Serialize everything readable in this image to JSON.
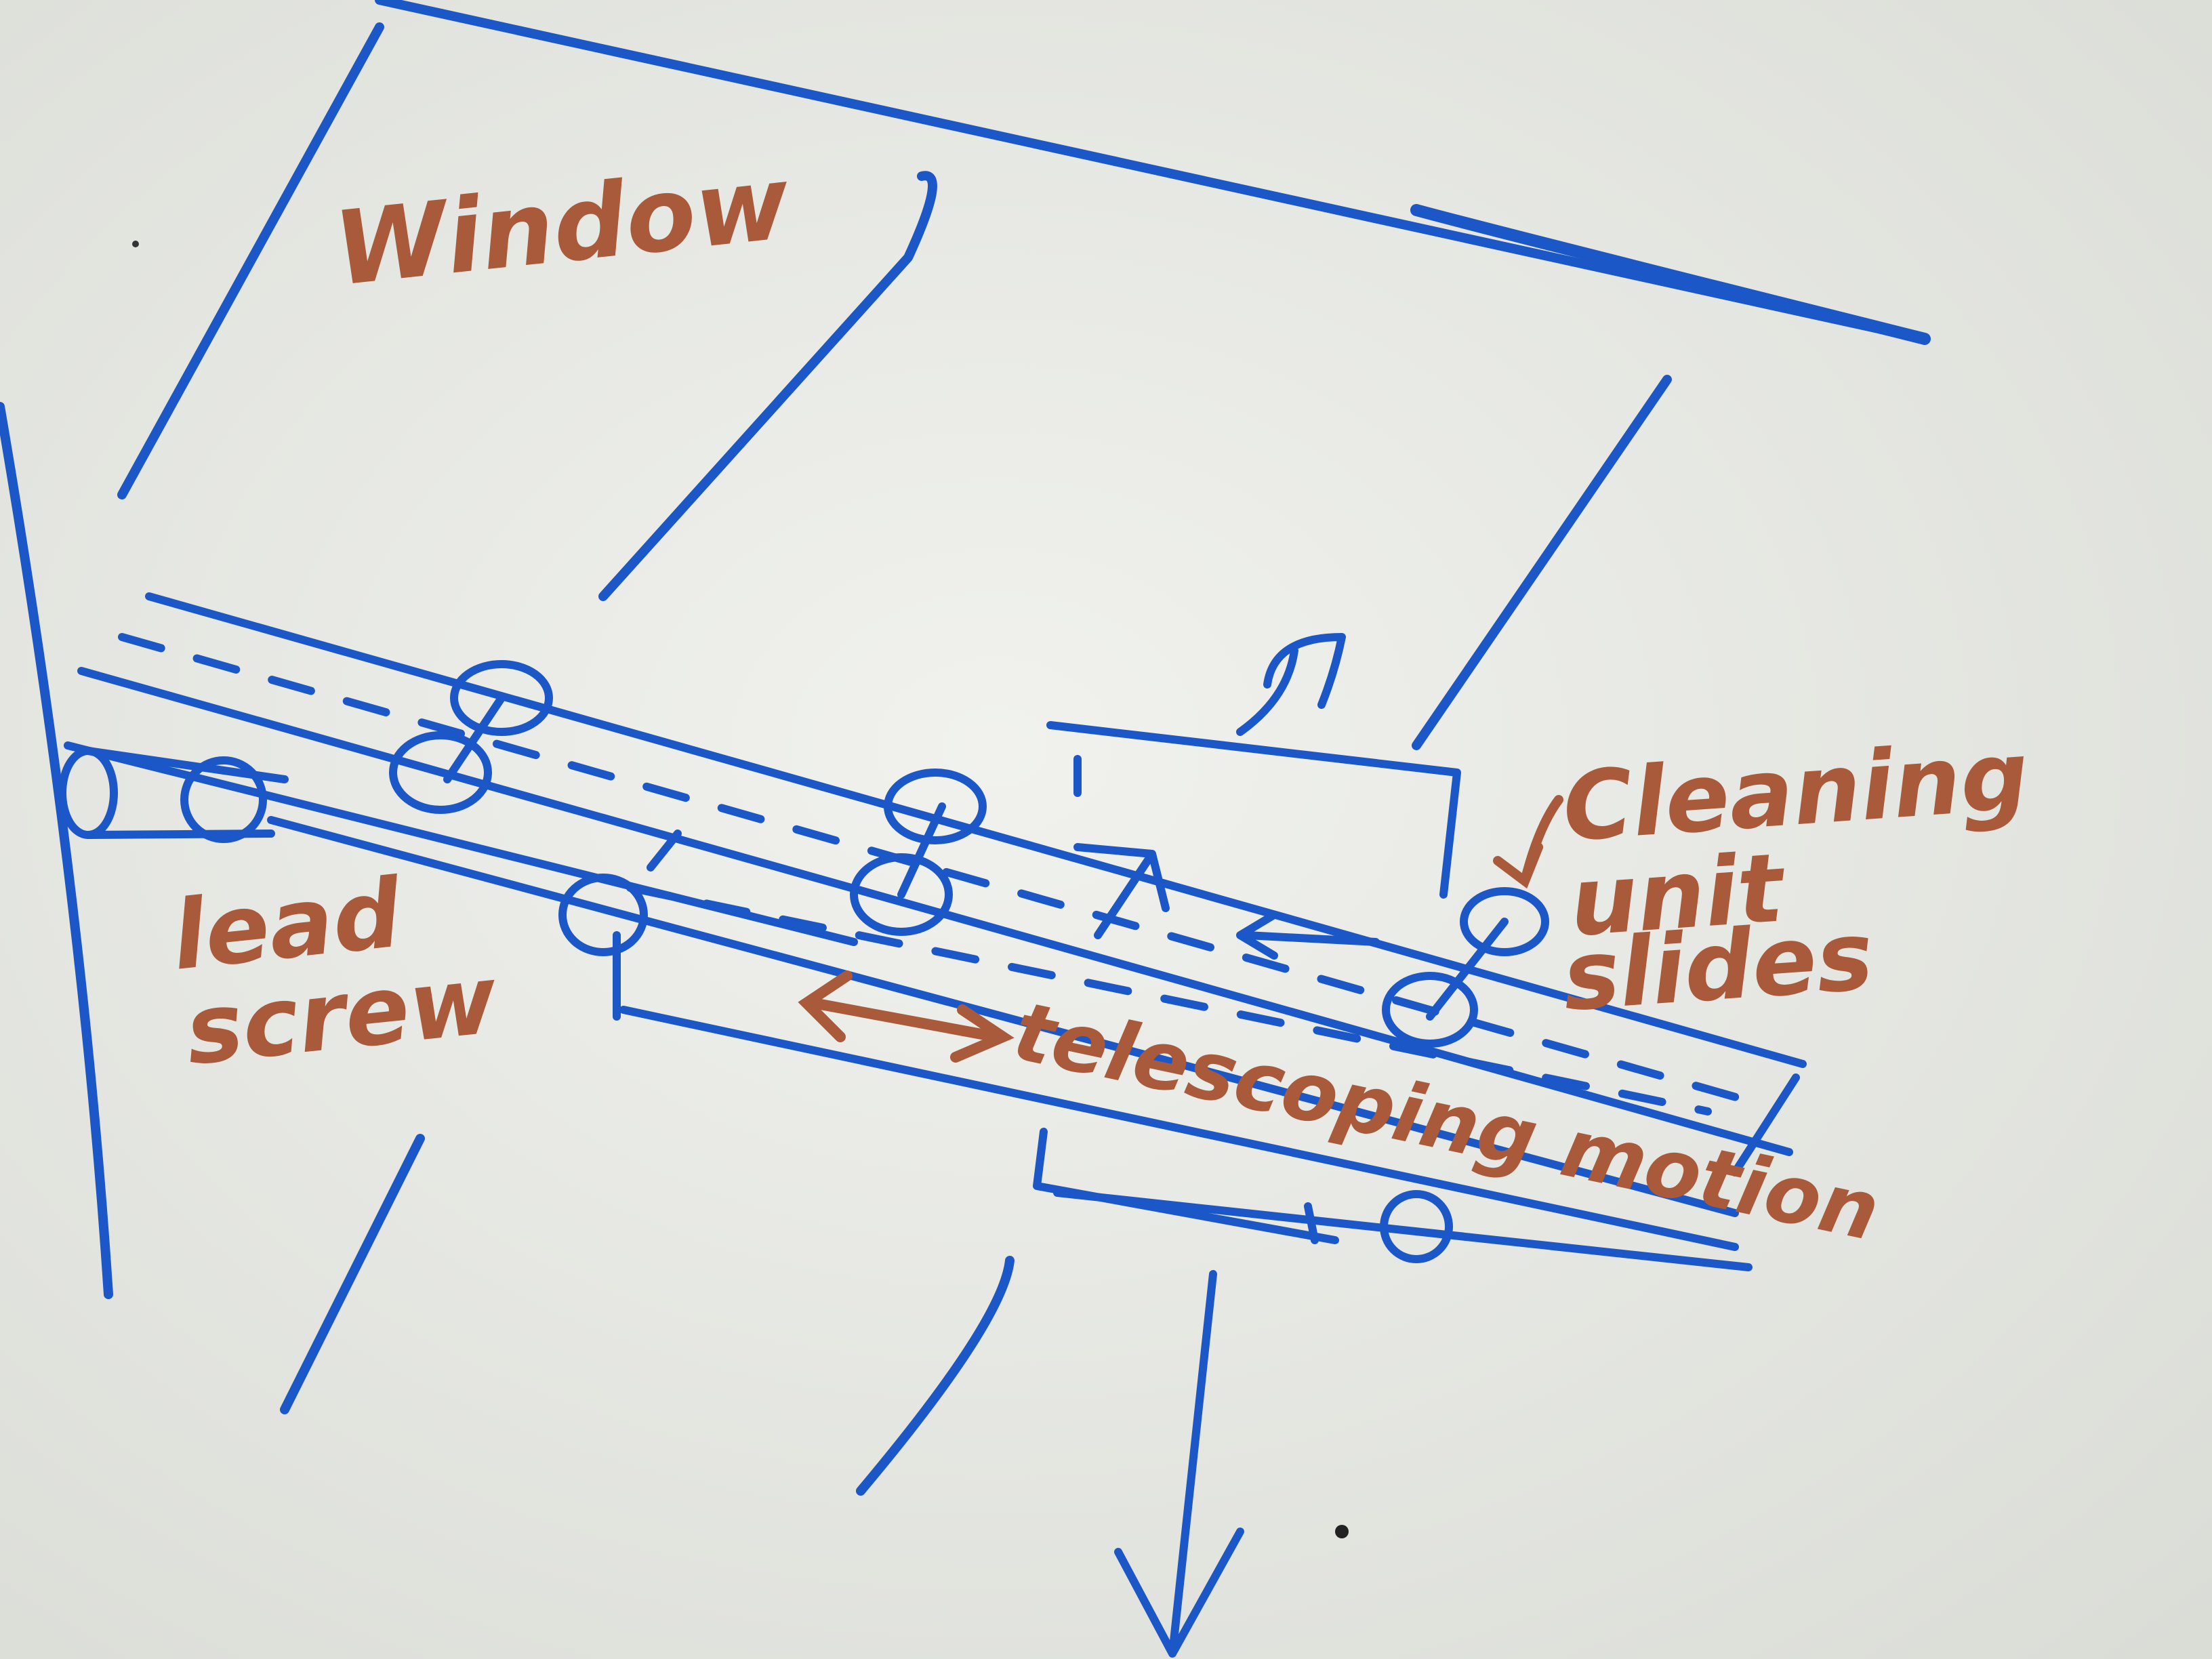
{
  "labels": {
    "window": "Window",
    "lead_screw_line1": "lead",
    "lead_screw_line2": "screw",
    "cleaning_line1": "Cleaning",
    "cleaning_line2": "unit",
    "cleaning_line3": "slides",
    "telescoping": "telescoping motion"
  },
  "colors": {
    "marker_blue": "#1c57c7",
    "marker_red": "#a85a3a",
    "board": "#e9eae6"
  }
}
